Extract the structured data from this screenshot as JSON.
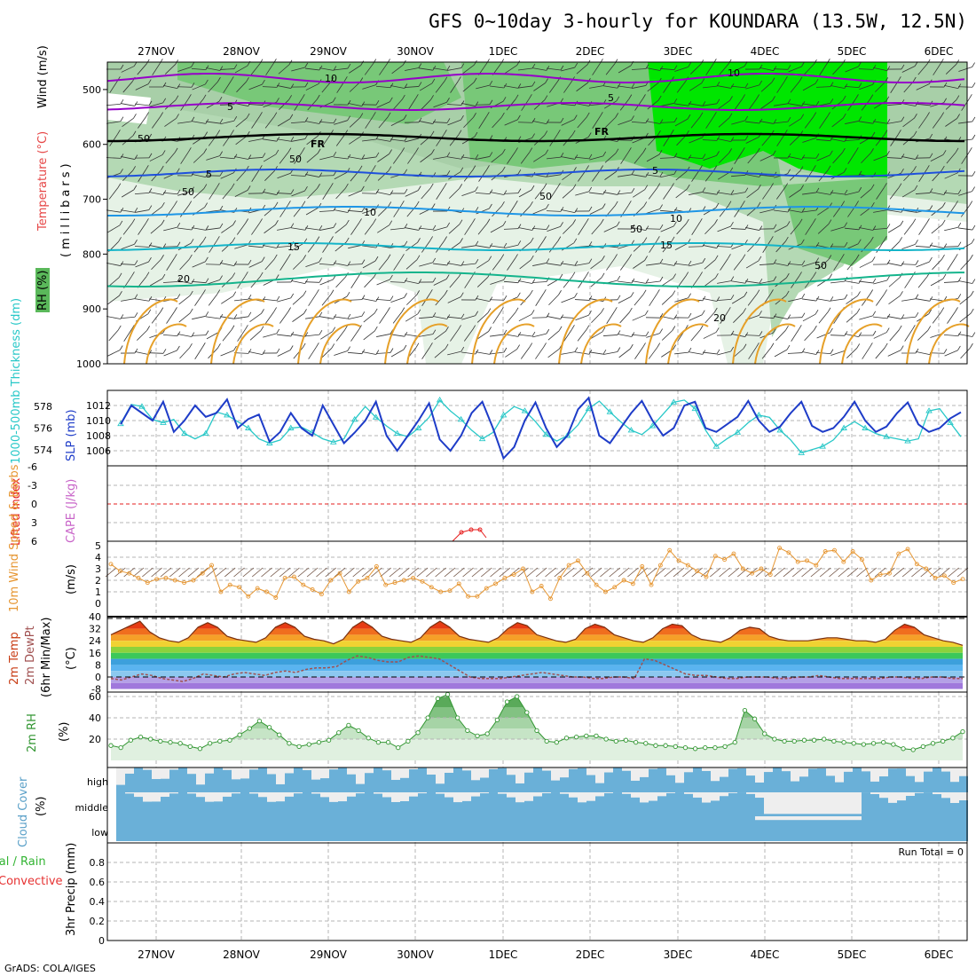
{
  "title": "GFS 0~10day 3-hourly for KOUNDARA (13.5W, 12.5N)",
  "footer": "GrADS: COLA/IGES",
  "colors": {
    "rh_light": "#e6f2e6",
    "rh_mid": "#b4d9b4",
    "rh_dark": "#78c878",
    "rh_bright": "#00e600",
    "wind_contour": "#9600c8",
    "freezing": "#000000",
    "temp_blue": "#1e50dc",
    "temp_lightblue": "#1e96e6",
    "temp_teal": "#14b4c8",
    "temp_green": "#14b48c",
    "temp_orange": "#e6a028",
    "thickness": "#28c8c8",
    "slp": "#1e3cc8",
    "lifted_index": "#e61e1e",
    "wind10m": "#e69632",
    "temp2m": "#c83c14",
    "dewpt": "#a05050",
    "rh2m": "#329632",
    "cloud": "#6ab0d8",
    "cloud_bg": "#eeeeee"
  },
  "chart_data": {
    "type": "meteogram",
    "dates": [
      "27NOV",
      "28NOV",
      "29NOV",
      "30NOV",
      "1DEC",
      "2DEC",
      "3DEC",
      "4DEC",
      "5DEC",
      "6DEC"
    ],
    "upper_air": {
      "ylabel": "(millibars)",
      "side_labels": [
        "RH (%)",
        "Temperature (°C)",
        "Wind (m/s)"
      ],
      "y_ticks": [
        "500",
        "600",
        "700",
        "800",
        "900",
        "1000"
      ],
      "wind_contour_labels": [
        "10",
        "5",
        "10",
        "5"
      ],
      "freezing_labels": [
        "FR",
        "FR"
      ],
      "temperature_labels": [
        "5",
        "5",
        "10",
        "10",
        "15",
        "15",
        "20",
        "20"
      ],
      "rh_labels": [
        "50",
        "50",
        "50",
        "50",
        "50",
        "50"
      ]
    },
    "thickness_slp": {
      "left_label": "1000-500mb Thickness (dm)",
      "right_label": "SLP (mb)",
      "thickness_ticks": [
        "578",
        "576",
        "574"
      ],
      "slp_ticks": [
        "1012",
        "1010",
        "1008",
        "1006"
      ],
      "slp": [
        1009.5,
        1012,
        1011,
        1010,
        1012.5,
        1008.5,
        1010,
        1012,
        1010.5,
        1011,
        1012.8,
        1009,
        1010.2,
        1010.8,
        1007.2,
        1008.5,
        1011,
        1009,
        1008,
        1012,
        1009.5,
        1007,
        1008.4,
        1010,
        1012.5,
        1008,
        1006,
        1008,
        1010,
        1012.3,
        1007.5,
        1006,
        1008,
        1011,
        1012.5,
        1009,
        1005,
        1006.5,
        1010,
        1012.4,
        1009,
        1006.5,
        1008,
        1011.5,
        1013,
        1008,
        1007,
        1009,
        1011,
        1012.6,
        1010,
        1008,
        1009,
        1012,
        1012.5,
        1009,
        1008.5,
        1009.5,
        1010.5,
        1012.6,
        1010,
        1008.5,
        1009.2,
        1011,
        1012.5,
        1009.3,
        1008.5,
        1009,
        1010.5,
        1012.5,
        1010,
        1008.5,
        1009.2,
        1011,
        1012.4,
        1009.5,
        1008.5,
        1009,
        1010.3,
        1011.1
      ],
      "thickness": [
        576.4,
        578.2,
        578.0,
        576.8,
        576.5,
        576.8,
        575.5,
        575.0,
        575.5,
        577.5,
        577.2,
        576.6,
        576.0,
        575.0,
        574.6,
        574.9,
        576.0,
        576.1,
        575.6,
        575.0,
        574.7,
        575.0,
        576.8,
        578.0,
        577.0,
        576.2,
        575.5,
        575.2,
        576.0,
        577.0,
        578.6,
        577.6,
        576.8,
        575.8,
        575.0,
        575.6,
        577.2,
        578.0,
        577.6,
        576.6,
        575.4,
        574.8,
        575.3,
        576.3,
        577.8,
        578.5,
        577.5,
        576.6,
        575.8,
        575.4,
        576.2,
        577.3,
        578.4,
        578.6,
        577.8,
        575.8,
        574.3,
        575.0,
        575.6,
        576.5,
        577.2,
        577.0,
        575.8,
        574.9,
        573.7,
        574.0,
        574.3,
        574.9,
        576.0,
        576.6,
        576.0,
        575.5,
        575.2,
        575.0,
        574.8,
        575.0,
        577.6,
        577.8,
        576.5,
        575.2
      ]
    },
    "cape_li": {
      "left_label": "Lifted Index",
      "right_label": "CAPE (J/kg)",
      "li_ticks": [
        "-6",
        "-3",
        "0",
        "3",
        "6"
      ]
    },
    "wind10m": {
      "label": "10m Wind Speed & Barbs",
      "unit": "(m/s)",
      "ticks": [
        "5",
        "4",
        "3",
        "2",
        "1",
        "0"
      ],
      "speed": [
        3.4,
        2.8,
        2.6,
        2.2,
        1.8,
        2.1,
        2.2,
        2.0,
        1.8,
        2.0,
        2.6,
        3.3,
        1.0,
        1.6,
        1.4,
        0.6,
        1.3,
        1.0,
        0.5,
        2.2,
        2.3,
        1.6,
        1.2,
        0.8,
        2.0,
        2.6,
        1.0,
        1.9,
        2.2,
        3.2,
        1.6,
        1.8,
        2.0,
        2.2,
        1.9,
        1.4,
        1.0,
        1.1,
        1.7,
        0.6,
        0.6,
        1.3,
        1.7,
        2.2,
        2.5,
        3.0,
        1.0,
        1.5,
        0.4,
        2.2,
        3.3,
        3.7,
        2.6,
        1.6,
        1.0,
        1.4,
        2.0,
        1.7,
        3.2,
        1.6,
        3.3,
        4.6,
        3.7,
        3.3,
        2.8,
        2.3,
        4.1,
        3.8,
        4.3,
        3.0,
        2.6,
        3.0,
        2.5,
        4.8,
        4.4,
        3.6,
        3.7,
        3.3,
        4.5,
        4.6,
        3.6,
        4.5,
        3.8,
        2.0,
        2.5,
        2.6,
        4.3,
        4.7,
        3.4,
        3.0,
        2.2,
        2.4,
        1.8,
        2.1
      ]
    },
    "temp2m": {
      "labels": [
        "2m Temp",
        "2m DewPt",
        "(6hr Min/Max)",
        "(°C)"
      ],
      "ticks": [
        "40",
        "32",
        "24",
        "16",
        "8",
        "0",
        "-8"
      ],
      "temp": [
        28,
        31,
        34,
        37,
        30,
        26,
        24,
        23,
        26,
        33,
        36,
        33,
        27,
        25,
        24,
        23,
        26,
        33,
        36,
        33,
        27,
        25,
        24,
        22,
        25,
        33,
        37,
        33,
        27,
        25,
        24,
        23,
        26,
        33,
        37,
        33,
        27,
        25,
        24,
        23,
        26,
        32,
        36,
        34,
        28,
        26,
        24,
        23,
        25,
        32,
        35,
        33,
        28,
        26,
        24,
        23,
        26,
        32,
        35,
        34,
        28,
        25,
        24,
        23,
        26,
        31,
        33,
        32,
        27,
        25,
        24,
        24,
        24,
        25,
        26,
        26,
        25,
        24,
        24,
        23,
        25,
        31,
        35,
        33,
        28,
        26,
        24,
        23,
        21
      ],
      "dewpt": [
        -1,
        -2,
        0,
        2,
        1,
        -1,
        -2,
        -3,
        -1,
        2,
        1,
        0,
        2,
        3,
        2,
        1,
        3,
        4,
        3,
        5,
        6,
        6,
        7,
        11,
        14,
        13,
        11,
        10,
        10,
        13,
        14,
        13,
        12,
        8,
        4,
        0,
        -1,
        -1,
        -1,
        0,
        1,
        2,
        3,
        2,
        1,
        0,
        0,
        -1,
        -1,
        0,
        0,
        -1,
        12,
        11,
        8,
        5,
        2,
        1,
        1,
        0,
        -1,
        -1,
        0,
        0,
        0,
        -1,
        -1,
        0,
        0,
        1,
        0,
        -1,
        -1,
        -1,
        -1,
        -1,
        0,
        0,
        -1,
        -1,
        0,
        0,
        -1,
        -1
      ]
    },
    "rh2m": {
      "label": "2m RH",
      "unit": "(%)",
      "ticks": [
        "60",
        "40",
        "20"
      ],
      "values": [
        14,
        12,
        19,
        22,
        20,
        18,
        17,
        16,
        13,
        11,
        16,
        18,
        19,
        24,
        30,
        37,
        31,
        24,
        16,
        13,
        15,
        17,
        19,
        26,
        33,
        28,
        21,
        17,
        17,
        12,
        18,
        26,
        40,
        58,
        62,
        40,
        28,
        23,
        25,
        38,
        55,
        60,
        45,
        28,
        18,
        17,
        21,
        22,
        23,
        23,
        20,
        18,
        19,
        17,
        16,
        14,
        14,
        13,
        12,
        11,
        12,
        12,
        13,
        17,
        47,
        39,
        25,
        20,
        18,
        18,
        19,
        19,
        20,
        18,
        17,
        16,
        15,
        16,
        17,
        15,
        11,
        10,
        13,
        16,
        18,
        21,
        27
      ]
    },
    "cloud": {
      "label": "Cloud Cover (%)",
      "layers": [
        "high",
        "middle",
        "low"
      ]
    },
    "precip": {
      "label": "3hr Precip (mm)",
      "side_labels": [
        "Total / Rain",
        "Convective"
      ],
      "ticks": [
        "0.8",
        "0.6",
        "0.4",
        "0.2",
        "0"
      ],
      "run_total": "Run Total = 0"
    }
  }
}
